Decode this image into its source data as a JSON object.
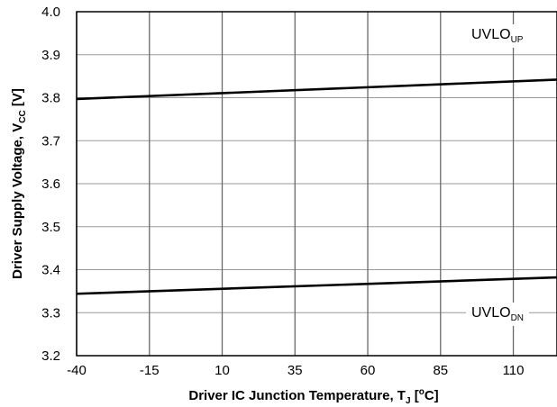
{
  "chart_data": {
    "type": "line",
    "xlabel": {
      "text": "Driver IC Junction Temperature, T",
      "subscript": "J",
      "suffix": " [",
      "superscript": "o",
      "suffix2": "C]"
    },
    "ylabel": {
      "text": "Driver Supply Voltage, V",
      "subscript": "CC",
      "suffix": " [V]"
    },
    "xlim": [
      -40,
      125
    ],
    "ylim": [
      3.2,
      4.0
    ],
    "x_ticks": [
      -40,
      -15,
      10,
      35,
      60,
      85,
      110
    ],
    "x_tick_labels": [
      "-40",
      "-15",
      "10",
      "35",
      "60",
      "85",
      "110"
    ],
    "y_ticks": [
      3.2,
      3.3,
      3.4,
      3.5,
      3.6,
      3.7,
      3.8,
      3.9,
      4.0
    ],
    "y_tick_labels": [
      "3.2",
      "3.3",
      "3.4",
      "3.5",
      "3.6",
      "3.7",
      "3.8",
      "3.9",
      "4.0"
    ],
    "grid": true,
    "series": [
      {
        "name": "UVLO",
        "name_subscript": "UP",
        "x": [
          -40,
          125
        ],
        "y": [
          3.797,
          3.842
        ],
        "color": "#000000"
      },
      {
        "name": "UVLO",
        "name_subscript": "DN",
        "x": [
          -40,
          125
        ],
        "y": [
          3.344,
          3.382
        ],
        "color": "#000000"
      }
    ]
  }
}
